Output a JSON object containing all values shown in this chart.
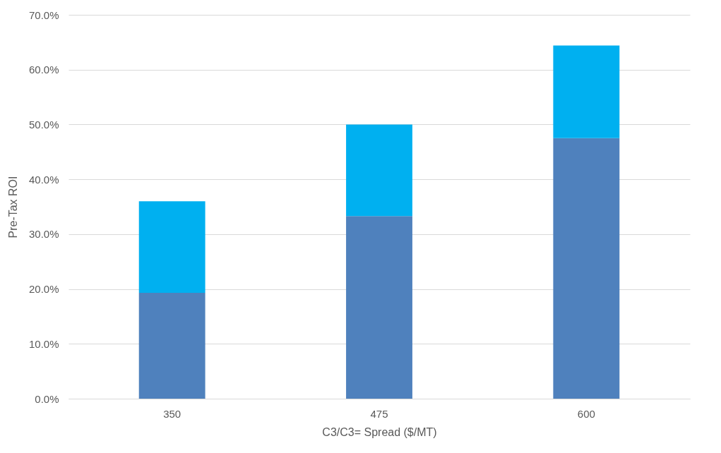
{
  "chart_data": {
    "type": "bar",
    "stacked": true,
    "xlabel": "C3/C3= Spread ($/MT)",
    "ylabel": "Pre-Tax ROI",
    "categories": [
      "350",
      "475",
      "600"
    ],
    "series": [
      {
        "color": "#4f81bd",
        "values": [
          19.3,
          33.3,
          47.5
        ]
      },
      {
        "color": "#00b0f0",
        "values": [
          16.7,
          16.7,
          16.9
        ]
      }
    ],
    "ylim": [
      0,
      70
    ],
    "yticks": [
      {
        "value": 0,
        "label": "0.0%"
      },
      {
        "value": 10,
        "label": "10.0%"
      },
      {
        "value": 20,
        "label": "20.0%"
      },
      {
        "value": 30,
        "label": "30.0%"
      },
      {
        "value": 40,
        "label": "40.0%"
      },
      {
        "value": 50,
        "label": "50.0%"
      },
      {
        "value": 60,
        "label": "60.0%"
      },
      {
        "value": 70,
        "label": "70.0%"
      }
    ],
    "grid": "y",
    "legend": false
  }
}
